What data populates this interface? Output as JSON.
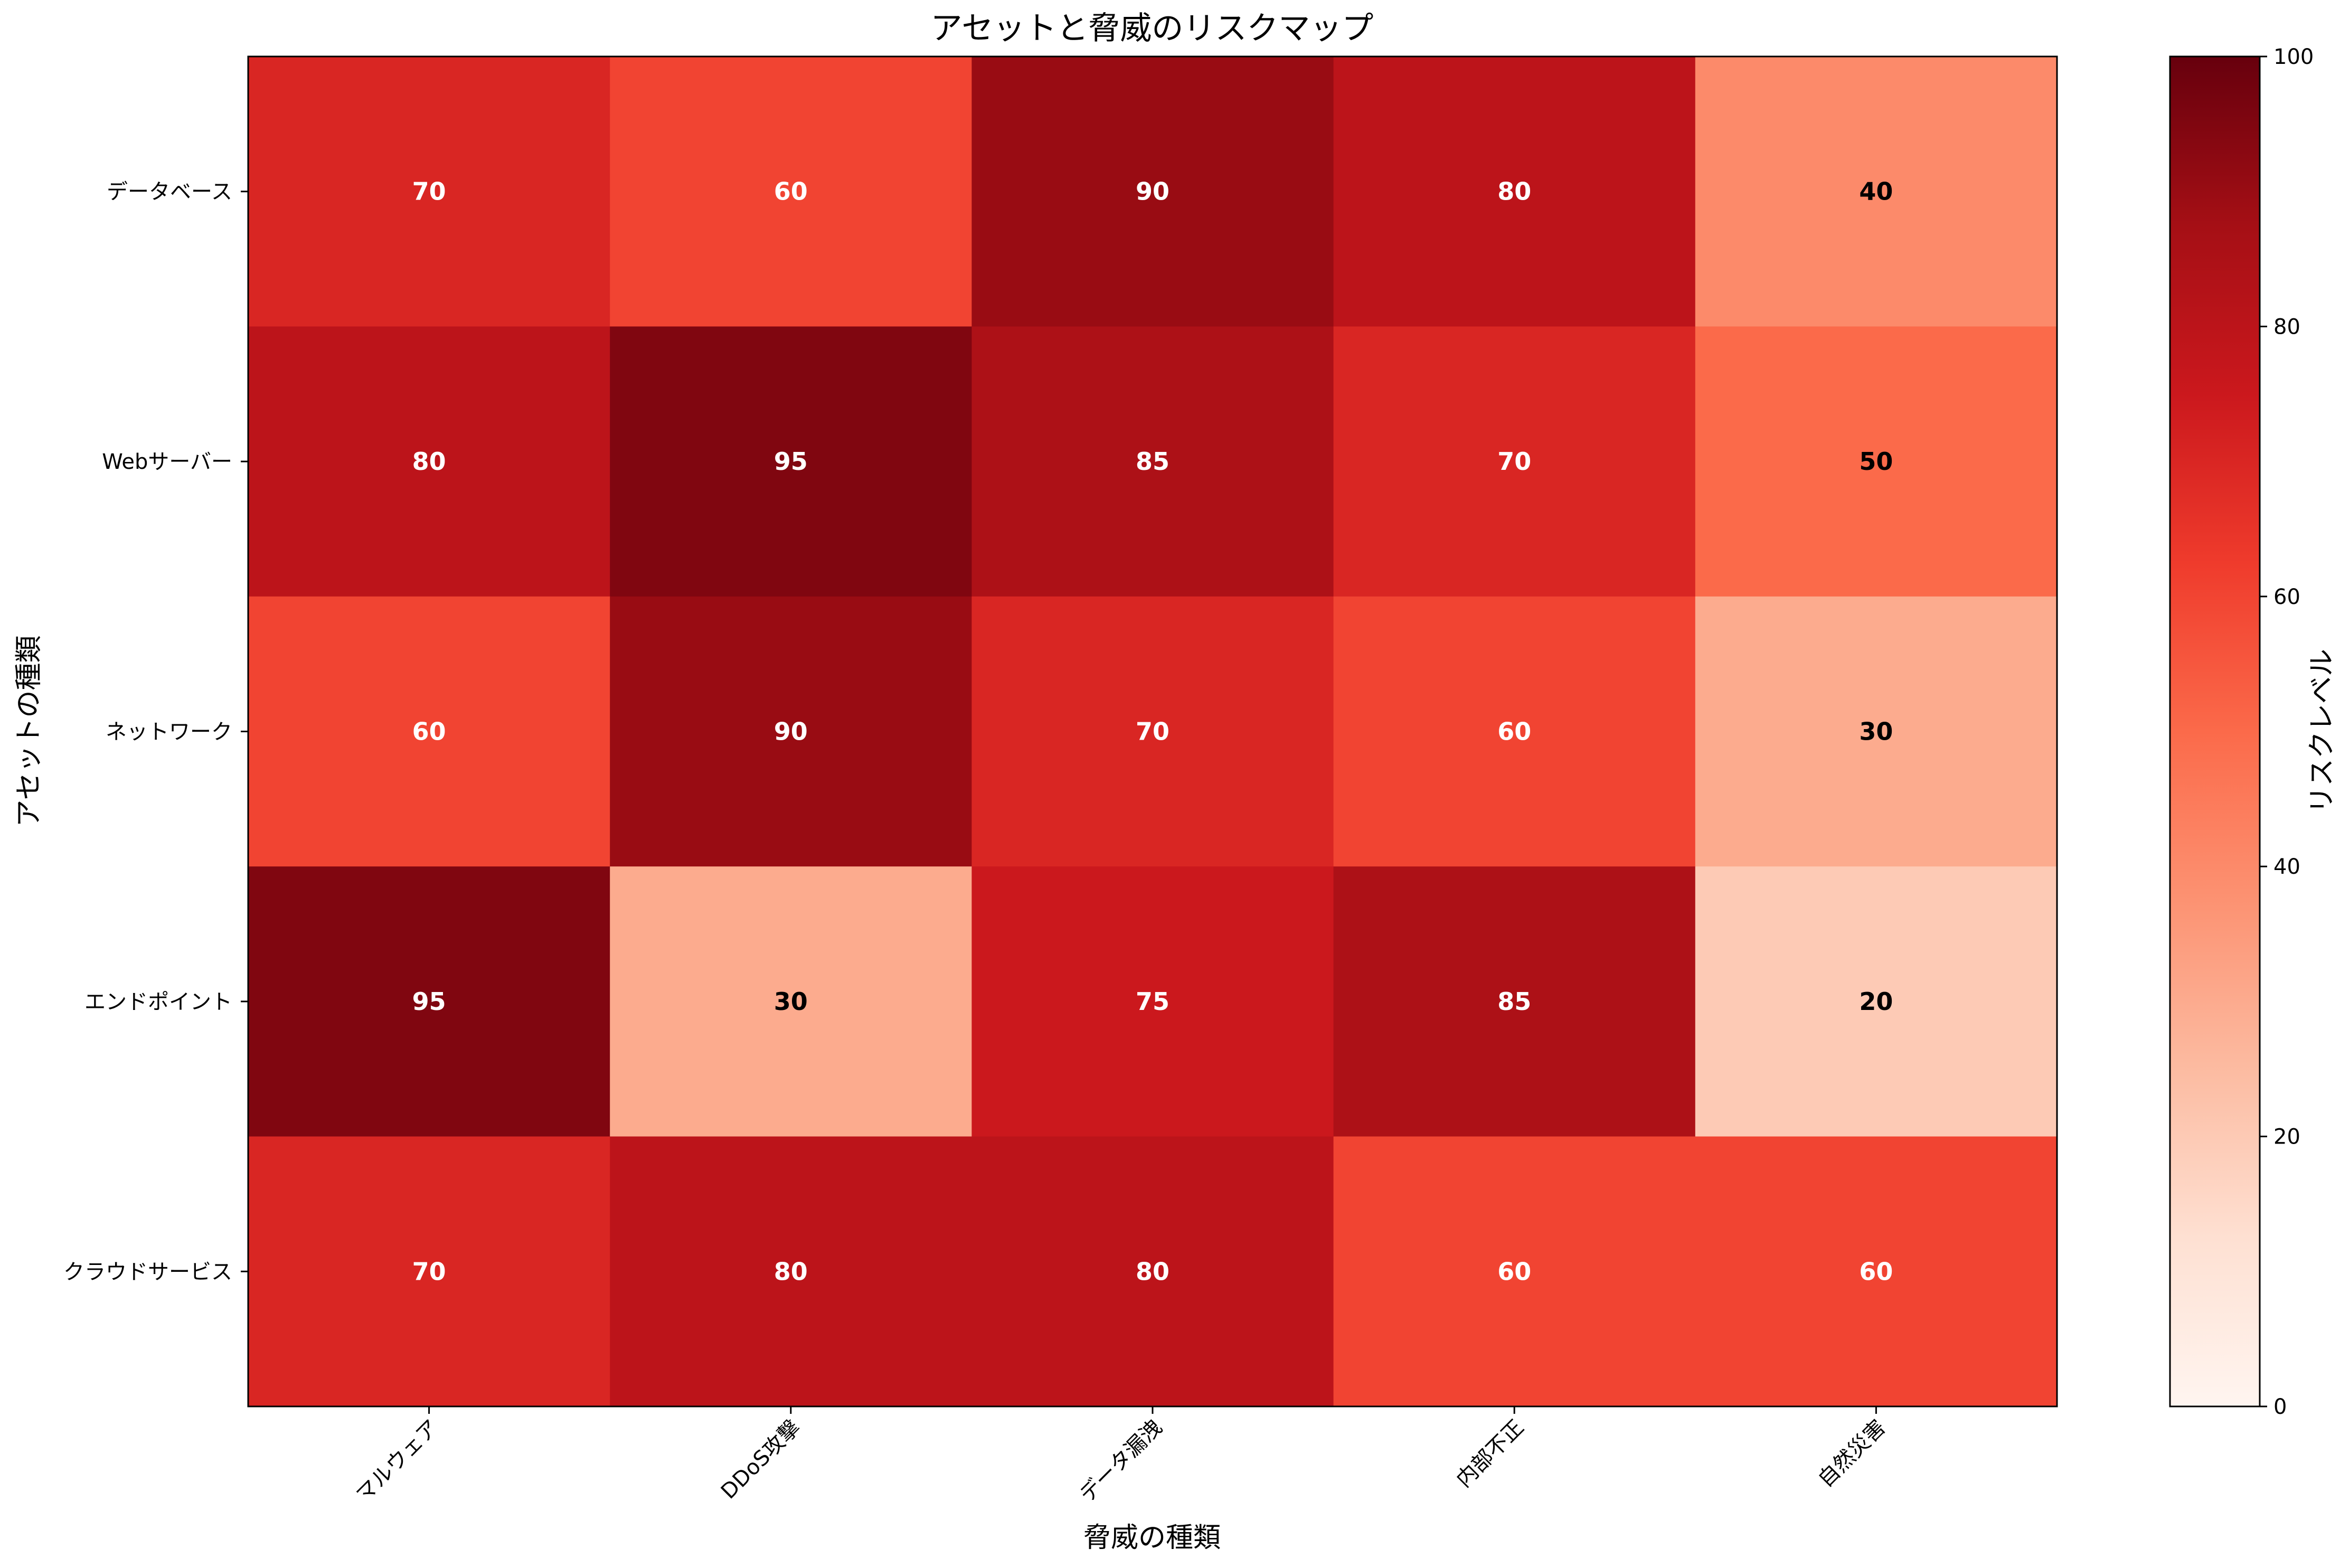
{
  "chart_data": {
    "type": "heatmap",
    "title": "アセットと脅威のリスクマップ",
    "xlabel": "脅威の種類",
    "ylabel": "アセットの種類",
    "x_categories": [
      "マルウェア",
      "DDoS攻撃",
      "データ漏洩",
      "内部不正",
      "自然災害"
    ],
    "y_categories": [
      "データベース",
      "Webサーバー",
      "ネットワーク",
      "エンドポイント",
      "クラウドサービス"
    ],
    "values": [
      [
        70,
        60,
        90,
        80,
        40
      ],
      [
        80,
        95,
        85,
        70,
        50
      ],
      [
        60,
        90,
        70,
        60,
        30
      ],
      [
        95,
        30,
        75,
        85,
        20
      ],
      [
        70,
        80,
        80,
        60,
        60
      ]
    ],
    "colorbar": {
      "label": "リスクレベル",
      "range": [
        0,
        100
      ],
      "ticks": [
        "0",
        "20",
        "40",
        "60",
        "80",
        "100"
      ],
      "colormap": "Reds"
    }
  }
}
